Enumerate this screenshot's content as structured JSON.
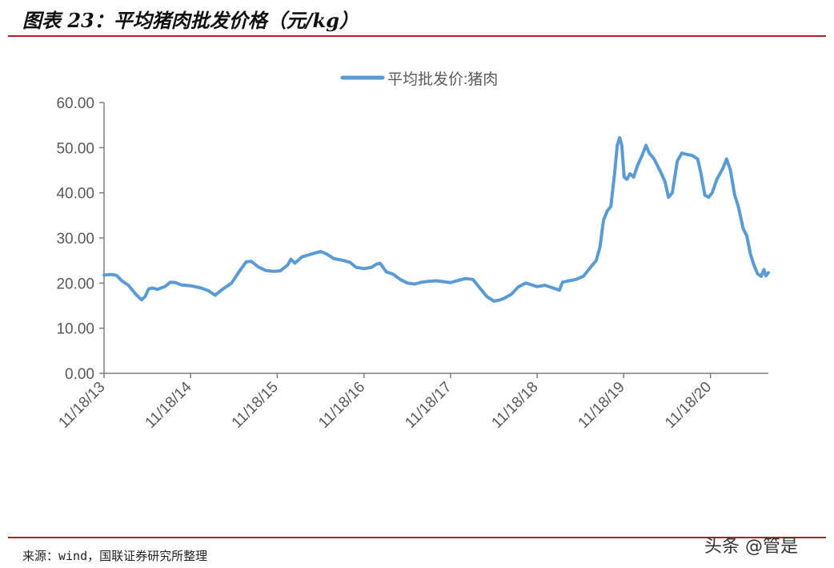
{
  "figure": {
    "title": "图表 23：平均猪肉批发价格（元/kg）",
    "source": "来源：wind，国联证券研究所整理",
    "watermark": "头条 @管是"
  },
  "colors": {
    "series": "#5b9bd5",
    "accent_rule": "#b3202a",
    "axis": "#7f7f7f",
    "text": "#595959"
  },
  "chart_data": {
    "type": "line",
    "legend": {
      "position": "top-center",
      "entries": [
        "平均批发价:猪肉"
      ]
    },
    "ylim": [
      0,
      60
    ],
    "yticks": [
      "0.00",
      "10.00",
      "20.00",
      "30.00",
      "40.00",
      "50.00",
      "60.00"
    ],
    "xticks": [
      "11/18/13",
      "11/18/14",
      "11/18/15",
      "11/18/16",
      "11/18/17",
      "11/18/18",
      "11/18/19",
      "11/18/20"
    ],
    "xlim": [
      "2013-11-18",
      "2021-07-20"
    ],
    "grid": false,
    "series": [
      {
        "name": "平均批发价:猪肉",
        "points": [
          [
            "2013-11-18",
            21.8
          ],
          [
            "2013-12-20",
            21.9
          ],
          [
            "2014-01-10",
            21.7
          ],
          [
            "2014-02-01",
            20.5
          ],
          [
            "2014-03-01",
            19.5
          ],
          [
            "2014-04-01",
            17.5
          ],
          [
            "2014-04-25",
            16.3
          ],
          [
            "2014-05-10",
            17.0
          ],
          [
            "2014-05-25",
            18.7
          ],
          [
            "2014-06-10",
            18.9
          ],
          [
            "2014-07-01",
            18.6
          ],
          [
            "2014-08-01",
            19.2
          ],
          [
            "2014-08-25",
            20.2
          ],
          [
            "2014-09-15",
            20.1
          ],
          [
            "2014-10-10",
            19.6
          ],
          [
            "2014-11-18",
            19.4
          ],
          [
            "2015-01-01",
            18.9
          ],
          [
            "2015-02-01",
            18.3
          ],
          [
            "2015-03-01",
            17.3
          ],
          [
            "2015-04-01",
            18.6
          ],
          [
            "2015-05-10",
            20.0
          ],
          [
            "2015-06-10",
            22.5
          ],
          [
            "2015-07-10",
            24.7
          ],
          [
            "2015-08-01",
            24.8
          ],
          [
            "2015-09-01",
            23.5
          ],
          [
            "2015-10-01",
            22.8
          ],
          [
            "2015-11-01",
            22.6
          ],
          [
            "2015-12-01",
            22.7
          ],
          [
            "2016-01-01",
            24.0
          ],
          [
            "2016-01-15",
            25.3
          ],
          [
            "2016-02-01",
            24.4
          ],
          [
            "2016-03-01",
            25.8
          ],
          [
            "2016-04-15",
            26.5
          ],
          [
            "2016-05-20",
            27.0
          ],
          [
            "2016-06-15",
            26.4
          ],
          [
            "2016-07-15",
            25.4
          ],
          [
            "2016-08-15",
            25.1
          ],
          [
            "2016-09-20",
            24.6
          ],
          [
            "2016-10-15",
            23.5
          ],
          [
            "2016-11-18",
            23.2
          ],
          [
            "2016-12-20",
            23.5
          ],
          [
            "2017-01-10",
            24.2
          ],
          [
            "2017-01-25",
            24.4
          ],
          [
            "2017-02-20",
            22.5
          ],
          [
            "2017-03-20",
            22.0
          ],
          [
            "2017-04-20",
            20.8
          ],
          [
            "2017-05-20",
            20.0
          ],
          [
            "2017-06-20",
            19.8
          ],
          [
            "2017-07-20",
            20.2
          ],
          [
            "2017-08-20",
            20.4
          ],
          [
            "2017-09-20",
            20.5
          ],
          [
            "2017-10-20",
            20.3
          ],
          [
            "2017-11-18",
            20.1
          ],
          [
            "2017-12-20",
            20.6
          ],
          [
            "2018-01-20",
            21.0
          ],
          [
            "2018-02-20",
            20.8
          ],
          [
            "2018-03-20",
            19.0
          ],
          [
            "2018-04-20",
            17.0
          ],
          [
            "2018-05-20",
            16.0
          ],
          [
            "2018-06-10",
            16.2
          ],
          [
            "2018-07-01",
            16.6
          ],
          [
            "2018-08-01",
            17.5
          ],
          [
            "2018-09-01",
            19.2
          ],
          [
            "2018-10-01",
            20.0
          ],
          [
            "2018-11-01",
            19.5
          ],
          [
            "2018-11-18",
            19.2
          ],
          [
            "2018-12-20",
            19.5
          ],
          [
            "2019-01-20",
            19.0
          ],
          [
            "2019-02-20",
            18.4
          ],
          [
            "2019-03-05",
            20.2
          ],
          [
            "2019-04-01",
            20.5
          ],
          [
            "2019-05-01",
            20.8
          ],
          [
            "2019-06-01",
            21.5
          ],
          [
            "2019-07-01",
            23.5
          ],
          [
            "2019-07-25",
            25.0
          ],
          [
            "2019-08-10",
            28.0
          ],
          [
            "2019-08-25",
            34.0
          ],
          [
            "2019-09-10",
            36.0
          ],
          [
            "2019-09-25",
            37.0
          ],
          [
            "2019-10-10",
            44.0
          ],
          [
            "2019-10-22",
            50.5
          ],
          [
            "2019-11-01",
            52.2
          ],
          [
            "2019-11-10",
            50.5
          ],
          [
            "2019-11-20",
            43.5
          ],
          [
            "2019-12-01",
            43.0
          ],
          [
            "2019-12-15",
            44.2
          ],
          [
            "2019-12-30",
            43.5
          ],
          [
            "2020-01-15",
            46.0
          ],
          [
            "2020-02-05",
            48.5
          ],
          [
            "2020-02-20",
            50.5
          ],
          [
            "2020-03-05",
            48.8
          ],
          [
            "2020-03-25",
            47.5
          ],
          [
            "2020-04-20",
            44.8
          ],
          [
            "2020-05-10",
            42.5
          ],
          [
            "2020-05-25",
            39.0
          ],
          [
            "2020-06-10",
            40.0
          ],
          [
            "2020-07-01",
            47.0
          ],
          [
            "2020-07-20",
            48.8
          ],
          [
            "2020-08-10",
            48.5
          ],
          [
            "2020-09-01",
            48.3
          ],
          [
            "2020-09-25",
            47.5
          ],
          [
            "2020-10-10",
            44.0
          ],
          [
            "2020-10-25",
            39.5
          ],
          [
            "2020-11-10",
            39.0
          ],
          [
            "2020-11-25",
            40.0
          ],
          [
            "2020-12-15",
            43.0
          ],
          [
            "2021-01-10",
            45.5
          ],
          [
            "2021-01-25",
            47.5
          ],
          [
            "2021-02-10",
            45.0
          ],
          [
            "2021-02-28",
            39.5
          ],
          [
            "2021-03-15",
            37.0
          ],
          [
            "2021-04-05",
            32.0
          ],
          [
            "2021-04-20",
            30.5
          ],
          [
            "2021-05-05",
            26.5
          ],
          [
            "2021-05-20",
            24.0
          ],
          [
            "2021-06-05",
            22.0
          ],
          [
            "2021-06-20",
            21.5
          ],
          [
            "2021-07-01",
            23.0
          ],
          [
            "2021-07-10",
            21.6
          ],
          [
            "2021-07-20",
            22.3
          ]
        ]
      }
    ]
  }
}
